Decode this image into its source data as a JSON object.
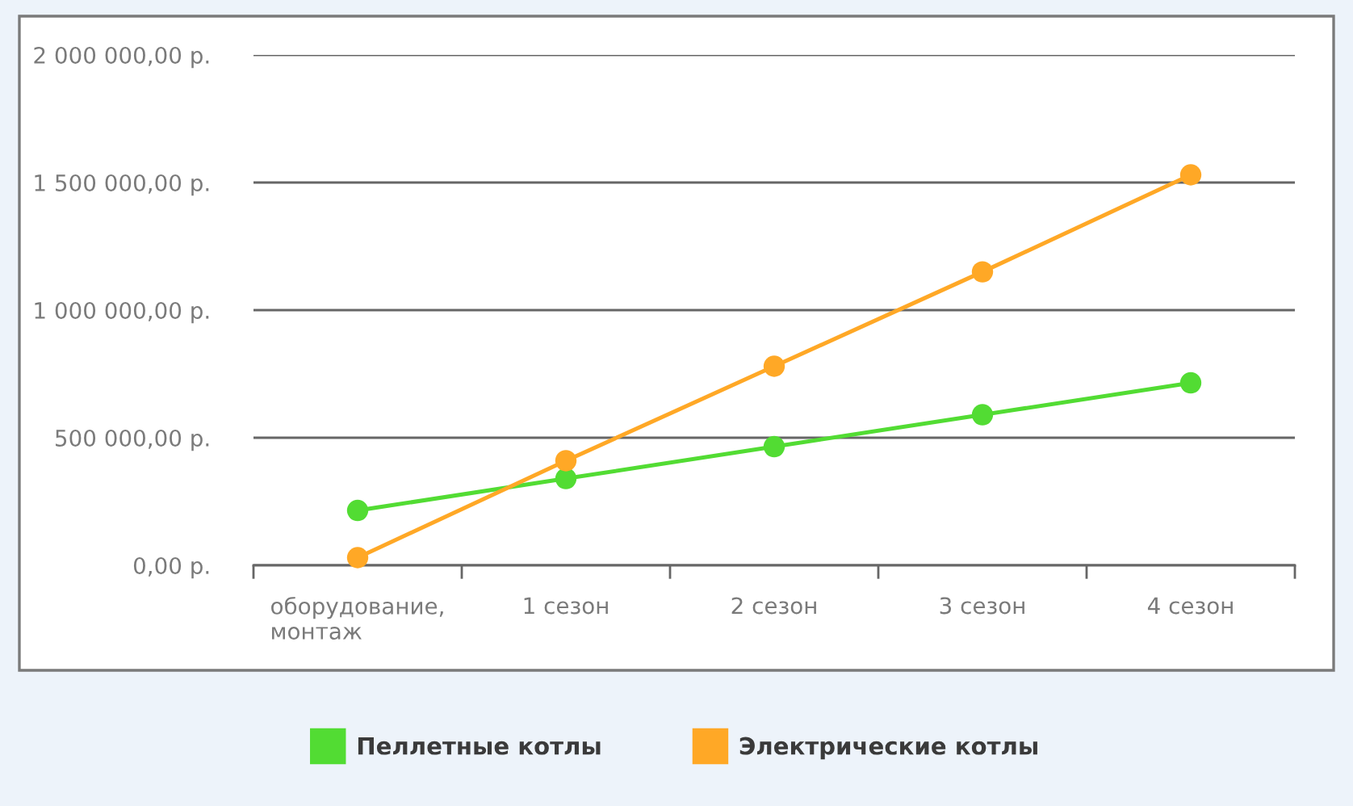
{
  "chart_data": {
    "type": "line",
    "categories": [
      "оборудование, монтаж",
      "1 сезон",
      "2 сезон",
      "3 сезон",
      "4 сезон"
    ],
    "series": [
      {
        "name": "Пеллетные котлы",
        "color": "#52dc33",
        "values": [
          215000,
          340000,
          465000,
          590000,
          715000
        ]
      },
      {
        "name": "Электрические котлы",
        "color": "#ffa826",
        "values": [
          30000,
          410000,
          780000,
          1150000,
          1530000
        ]
      }
    ],
    "ylim": [
      0,
      2000000
    ],
    "yticks": [
      {
        "value": 0,
        "label": "0,00 р."
      },
      {
        "value": 500000,
        "label": "500 000,00 р."
      },
      {
        "value": 1000000,
        "label": "1 000 000,00 р."
      },
      {
        "value": 1500000,
        "label": "1 500 000,00 р."
      },
      {
        "value": 2000000,
        "label": "2 000 000,00 р."
      }
    ],
    "grid": "y",
    "legend": "bottom",
    "marker": "circle",
    "line_style": "solid"
  }
}
